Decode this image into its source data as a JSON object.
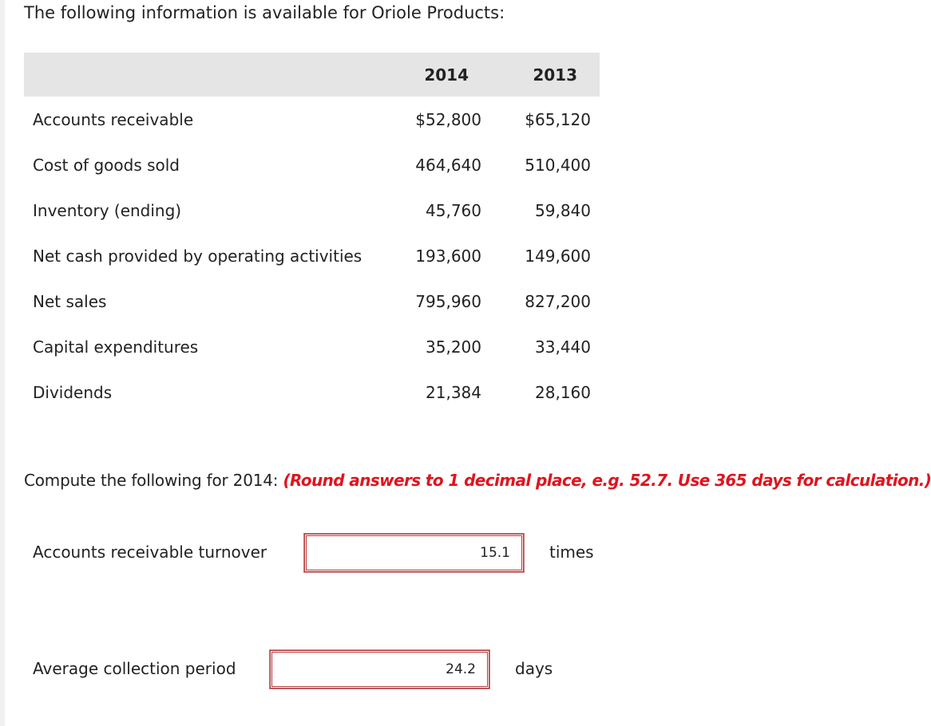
{
  "intro_text": "The following information is available for Oriole Products:",
  "table": {
    "headers": [
      "2014",
      "2013"
    ],
    "rows": [
      {
        "label": "Accounts receivable",
        "v2014": "$52,800",
        "v2013": "$65,120"
      },
      {
        "label": "Cost of goods sold",
        "v2014": "464,640",
        "v2013": "510,400"
      },
      {
        "label": "Inventory (ending)",
        "v2014": "45,760",
        "v2013": "59,840"
      },
      {
        "label": "Net cash provided by operating activities",
        "v2014": "193,600",
        "v2013": "149,600"
      },
      {
        "label": "Net sales",
        "v2014": "795,960",
        "v2013": "827,200"
      },
      {
        "label": "Capital expenditures",
        "v2014": "35,200",
        "v2013": "33,440"
      },
      {
        "label": "Dividends",
        "v2014": "21,384",
        "v2013": "28,160"
      }
    ]
  },
  "instruction": {
    "text": "Compute the following for 2014: ",
    "note": "(Round answers to 1 decimal place, e.g. 52.7. Use 365 days for calculation.)"
  },
  "questions": [
    {
      "label": "Accounts receivable turnover",
      "value": "15.1",
      "unit": "times"
    },
    {
      "label": "Average collection period",
      "value": "24.2",
      "unit": "days"
    }
  ],
  "colors": {
    "header_bg": "#e5e5e5",
    "note_red": "#e0141e",
    "answer_border": "#b53a3a"
  }
}
